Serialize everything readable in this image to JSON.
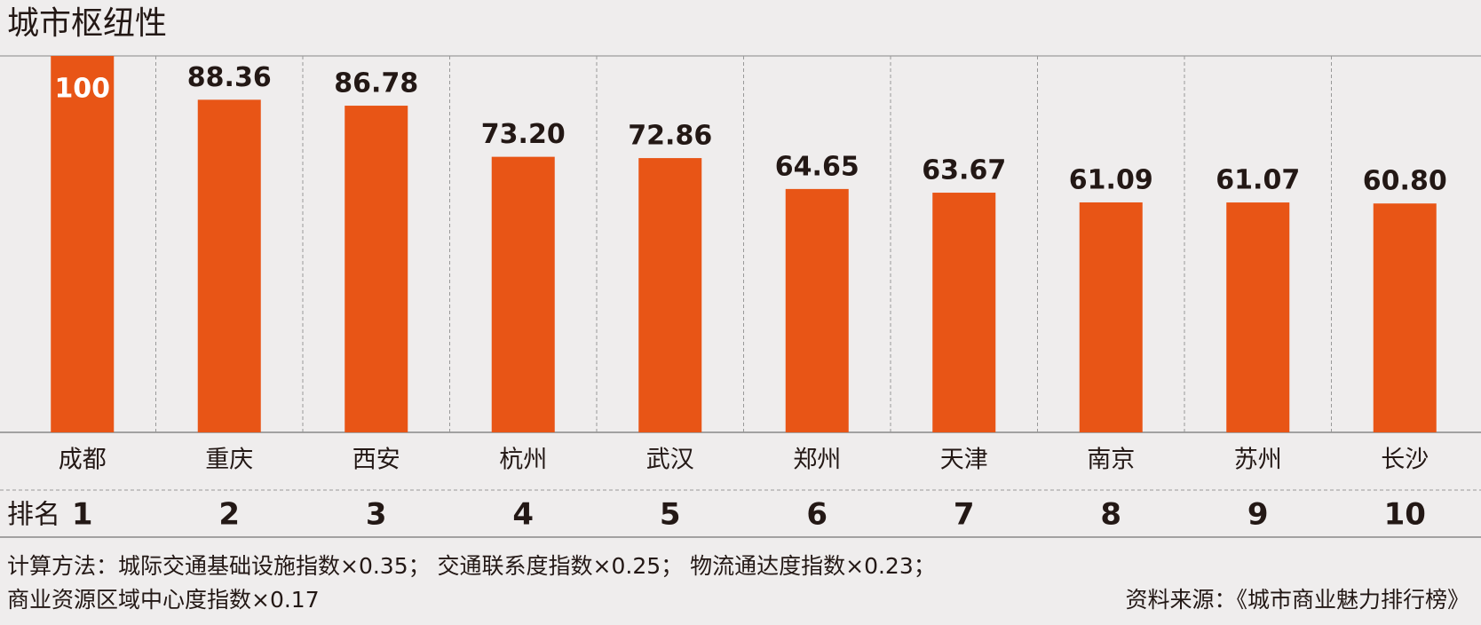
{
  "chart_data": {
    "type": "bar",
    "title": "城市枢纽性",
    "categories": [
      "成都",
      "重庆",
      "西安",
      "杭州",
      "武汉",
      "郑州",
      "天津",
      "南京",
      "苏州",
      "长沙"
    ],
    "values": [
      100,
      88.36,
      86.78,
      73.2,
      72.86,
      64.65,
      63.67,
      61.09,
      61.07,
      60.8
    ],
    "value_labels": [
      "100",
      "88.36",
      "86.78",
      "73.20",
      "72.86",
      "64.65",
      "63.67",
      "61.09",
      "61.07",
      "60.80"
    ],
    "color": "#e85516",
    "ylim": [
      0,
      100
    ],
    "rank_label": "排名",
    "ranks": [
      1,
      2,
      3,
      4,
      5,
      6,
      7,
      8,
      9,
      10
    ],
    "note_lines": [
      "计算方法：城际交通基础设施指数×0.35； 交通联系度指数×0.25； 物流通达度指数×0.23；",
      "商业资源区域中心度指数×0.17"
    ],
    "source": "资料来源：《城市商业魅力排行榜》"
  }
}
